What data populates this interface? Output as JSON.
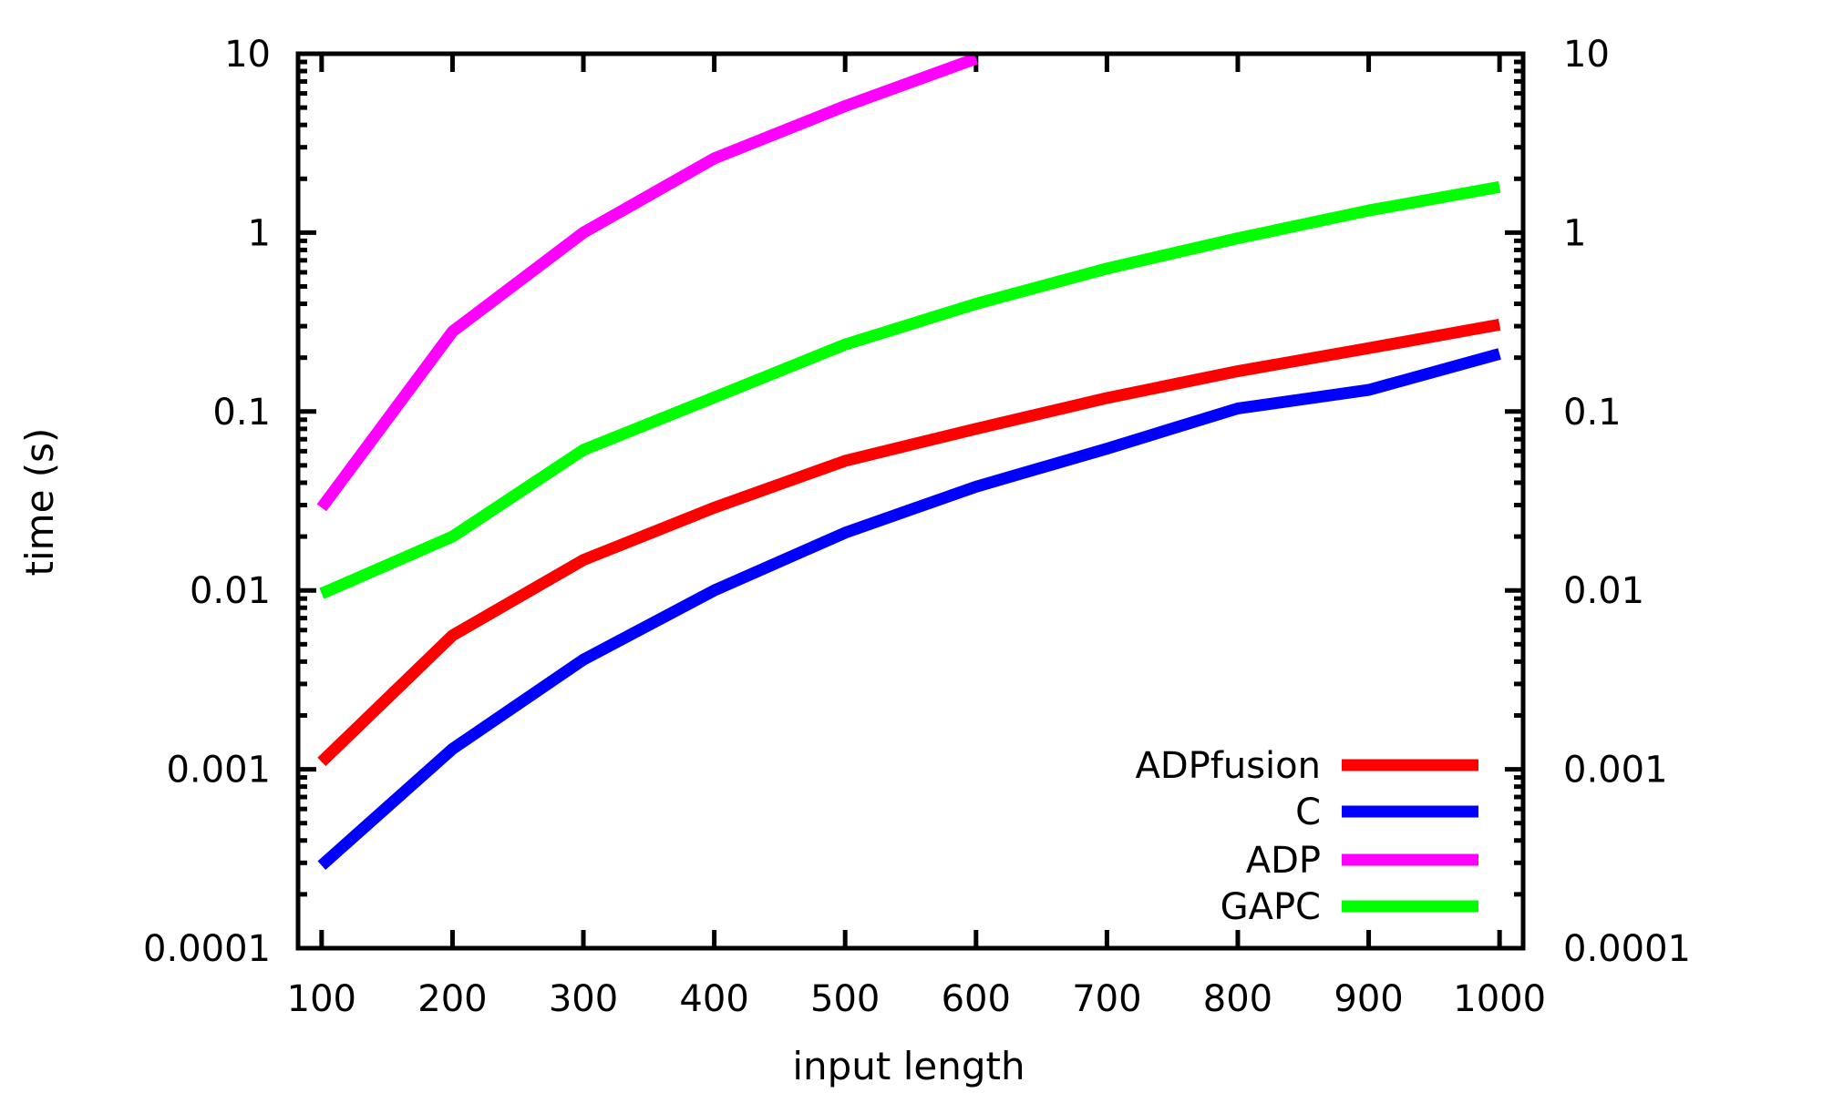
{
  "chart_data": {
    "type": "line",
    "title": "",
    "xlabel": "input length",
    "ylabel": "time (s)",
    "xlim": [
      82,
      1018
    ],
    "ylim": [
      0.0001,
      10
    ],
    "yscale": "log",
    "x_ticks": [
      100,
      200,
      300,
      400,
      500,
      600,
      700,
      800,
      900,
      1000
    ],
    "x_tick_labels": [
      "100",
      "200",
      "300",
      "400",
      "500",
      "600",
      "700",
      "800",
      "900",
      "1000"
    ],
    "y_ticks": [
      10,
      1,
      0.1,
      0.01,
      0.001,
      0.0001
    ],
    "y_tick_labels": [
      "10",
      "1",
      "0.1",
      "0.01",
      "0.001",
      "0.0001"
    ],
    "mirror_y_axis": true,
    "grid": false,
    "legend_position": "bottom-right",
    "series": [
      {
        "name": "ADPfusion",
        "color": "#ff0000",
        "x": [
          100,
          200,
          300,
          400,
          500,
          600,
          700,
          800,
          900,
          1000
        ],
        "values": [
          0.0011,
          0.0056,
          0.0148,
          0.029,
          0.053,
          0.08,
          0.119,
          0.168,
          0.226,
          0.306
        ]
      },
      {
        "name": "C",
        "color": "#0000ff",
        "x": [
          100,
          200,
          300,
          400,
          500,
          600,
          700,
          800,
          900,
          1000
        ],
        "values": [
          0.00029,
          0.0013,
          0.0041,
          0.01,
          0.021,
          0.038,
          0.062,
          0.104,
          0.132,
          0.21
        ]
      },
      {
        "name": "ADP",
        "color": "#ff00ff",
        "x": [
          100,
          200,
          300,
          400,
          500,
          600
        ],
        "values": [
          0.029,
          0.28,
          1.0,
          2.6,
          5.1,
          9.4
        ]
      },
      {
        "name": "GAPC",
        "color": "#00ff00",
        "x": [
          100,
          200,
          300,
          400,
          500,
          600,
          700,
          800,
          900,
          1000
        ],
        "values": [
          0.0096,
          0.02,
          0.061,
          0.12,
          0.237,
          0.4,
          0.63,
          0.93,
          1.33,
          1.8
        ]
      }
    ]
  }
}
